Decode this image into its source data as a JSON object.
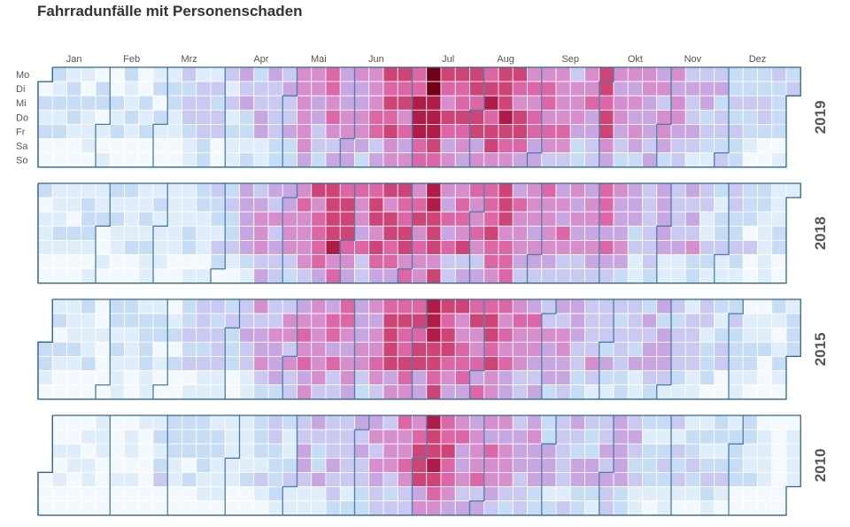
{
  "title": "Fahrradunfälle mit Personenschaden",
  "chart_data": {
    "type": "heatmap",
    "subtype": "calendar",
    "months": [
      "Jan",
      "Feb",
      "Mrz",
      "Apr",
      "Mai",
      "Jun",
      "Jul",
      "Aug",
      "Sep",
      "Okt",
      "Nov",
      "Dez"
    ],
    "weekdays": [
      "Mo",
      "Di",
      "Mi",
      "Do",
      "Fr",
      "Sa",
      "So"
    ],
    "years": [
      2019,
      2018,
      2015,
      2010
    ],
    "legend": "none",
    "grid": true,
    "color_scale": [
      "#f4f9fe",
      "#e0eefb",
      "#c7dcf5",
      "#c9c9f1",
      "#c8a6e2",
      "#d68fcc",
      "#dc66a6",
      "#ce4477",
      "#b01c49",
      "#720016"
    ],
    "value_range": [
      0,
      9
    ],
    "weekly_average_by_year": {
      "2019": [
        1,
        1,
        1,
        1,
        1,
        1,
        1,
        1,
        1,
        1,
        2,
        2,
        2,
        2,
        3,
        3,
        3,
        3,
        5,
        4,
        5,
        5,
        4,
        5,
        6,
        6,
        7,
        8,
        6,
        6,
        6,
        7,
        7,
        6,
        5,
        5,
        5,
        4,
        5,
        6,
        4,
        4,
        4,
        4,
        4,
        3,
        3,
        3,
        2,
        2,
        2,
        2
      ],
      "2018": [
        1,
        1,
        1,
        1,
        1,
        1,
        1,
        1,
        1,
        1,
        1,
        1,
        2,
        2,
        3,
        4,
        4,
        4,
        5,
        6,
        7,
        6,
        5,
        6,
        6,
        6,
        6,
        7,
        5,
        5,
        5,
        6,
        6,
        5,
        5,
        5,
        5,
        4,
        4,
        5,
        4,
        3,
        3,
        3,
        3,
        3,
        2,
        2,
        2,
        1,
        1,
        1
      ],
      "2015": [
        1,
        1,
        1,
        1,
        1,
        1,
        1,
        1,
        1,
        1,
        2,
        2,
        2,
        2,
        3,
        4,
        4,
        4,
        5,
        5,
        5,
        5,
        4,
        5,
        6,
        6,
        6,
        7,
        6,
        6,
        6,
        6,
        5,
        5,
        5,
        4,
        4,
        4,
        3,
        3,
        3,
        3,
        3,
        3,
        3,
        2,
        2,
        2,
        2,
        1,
        1,
        1
      ],
      "2010": [
        0,
        0,
        0,
        0,
        0,
        0,
        0,
        0,
        1,
        1,
        1,
        1,
        1,
        1,
        1,
        2,
        2,
        2,
        3,
        3,
        3,
        3,
        3,
        4,
        4,
        5,
        6,
        7,
        6,
        5,
        5,
        5,
        4,
        4,
        4,
        3,
        3,
        3,
        3,
        3,
        3,
        3,
        2,
        2,
        2,
        2,
        2,
        1,
        1,
        1,
        0,
        0
      ]
    }
  }
}
